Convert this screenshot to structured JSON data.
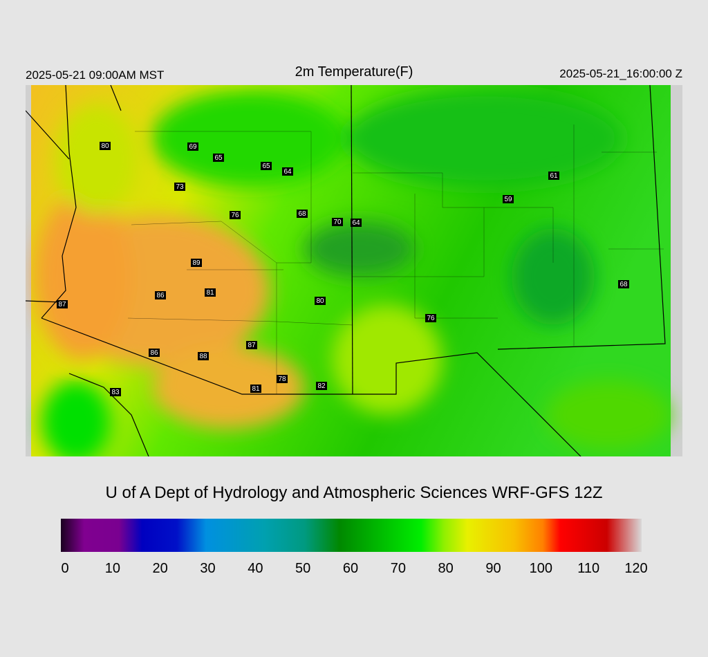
{
  "header": {
    "left": "2025-05-21 09:00AM MST",
    "title": "2m Temperature(F)",
    "right": "2025-05-21_16:00:00 Z"
  },
  "station_labels": [
    80,
    69,
    65,
    65,
    64,
    73,
    76,
    68,
    70,
    64,
    61,
    59,
    89,
    86,
    81,
    80,
    87,
    76,
    68,
    87,
    86,
    88,
    78,
    82,
    81,
    83
  ],
  "footer": "U of A Dept of Hydrology and Atmospheric Sciences WRF-GFS 12Z",
  "colorbar": {
    "ticks": [
      0,
      10,
      20,
      30,
      40,
      50,
      60,
      70,
      80,
      90,
      100,
      110,
      120
    ]
  }
}
